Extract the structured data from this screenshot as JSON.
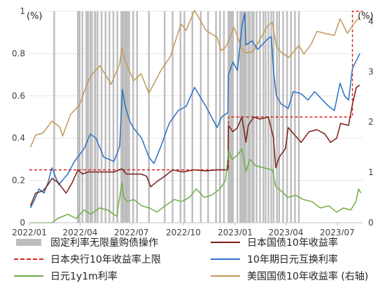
{
  "chart_data": {
    "type": "line",
    "y_unit_left": "(%)",
    "y_unit_right": "(%)",
    "ylim_left": [
      0,
      1
    ],
    "ylim_right": [
      0,
      4.2
    ],
    "yticks_left": [
      "0",
      "0.2",
      "0.4",
      "0.6",
      "0.8",
      "1"
    ],
    "yticks_right": [
      "0",
      "1",
      "2",
      "3",
      "4"
    ],
    "x_tick_labels": [
      "2022/01",
      "2022/04",
      "2022/07",
      "2022/10",
      "2023/01",
      "2023/04",
      "2023/07"
    ],
    "x_range": [
      "2022-01-01",
      "2023-08-15"
    ],
    "legend": [
      {
        "key": "fixed",
        "label": "固定利率无限量购债操作"
      },
      {
        "key": "jgb",
        "label": "日本国债10年收益率"
      },
      {
        "key": "boj",
        "label": "日本央行10年收益率上限"
      },
      {
        "key": "swap",
        "label": "10年期日元互换利率"
      },
      {
        "key": "y1y1m",
        "label": "日元1y1m利率"
      },
      {
        "key": "ust",
        "label": "美国国债10年收益率 (右轴)"
      }
    ],
    "fixed_rate_operation_dates": [
      "2022-02-14",
      "2022-03-28",
      "2022-03-29",
      "2022-03-30",
      "2022-03-31",
      "2022-04-05",
      "2022-04-12",
      "2022-04-15",
      "2022-04-19",
      "2022-04-22",
      "2022-04-27",
      "2022-04-28",
      "2022-05-02",
      "2022-05-09",
      "2022-05-16",
      "2022-05-23",
      "2022-05-30",
      "2022-06-06",
      "2022-06-13",
      "2022-06-14",
      "2022-06-15",
      "2022-06-16",
      "2022-06-17",
      "2022-06-20",
      "2022-06-21",
      "2022-06-22",
      "2022-06-23",
      "2022-06-24",
      "2022-06-27",
      "2022-07-04",
      "2022-07-11",
      "2022-08-01",
      "2022-08-29",
      "2022-09-12",
      "2022-09-26",
      "2022-10-03",
      "2022-10-17",
      "2022-11-01",
      "2022-11-14",
      "2022-11-28",
      "2022-12-05",
      "2022-12-12",
      "2022-12-20",
      "2022-12-21",
      "2022-12-22",
      "2022-12-23",
      "2022-12-26",
      "2022-12-28",
      "2023-01-05",
      "2023-01-10",
      "2023-01-12",
      "2023-01-13",
      "2023-01-16",
      "2023-01-17",
      "2023-01-18",
      "2023-01-20",
      "2023-01-24",
      "2023-01-27",
      "2023-01-31",
      "2023-02-03",
      "2023-02-08",
      "2023-02-14",
      "2023-02-20",
      "2023-02-24",
      "2023-03-01",
      "2023-03-06",
      "2023-03-10",
      "2023-03-16",
      "2023-03-20",
      "2023-03-27",
      "2023-04-03",
      "2023-04-10",
      "2023-04-17",
      "2023-04-24"
    ],
    "series": [
      {
        "key": "boj",
        "axis": "left",
        "color": "#e02020",
        "dash": true,
        "points": [
          [
            "2022-01-01",
            0.25
          ],
          [
            "2022-12-19",
            0.25
          ],
          [
            "2022-12-20",
            0.5
          ],
          [
            "2023-07-27",
            0.5
          ],
          [
            "2023-07-28",
            1.0
          ],
          [
            "2023-08-15",
            1.0
          ]
        ]
      },
      {
        "key": "ust",
        "axis": "right",
        "color": "#c09a58",
        "points": [
          [
            "2022-01-03",
            1.5
          ],
          [
            "2022-01-12",
            1.74
          ],
          [
            "2022-01-25",
            1.78
          ],
          [
            "2022-02-10",
            2.02
          ],
          [
            "2022-02-24",
            1.9
          ],
          [
            "2022-03-01",
            1.72
          ],
          [
            "2022-03-15",
            2.15
          ],
          [
            "2022-03-31",
            2.34
          ],
          [
            "2022-04-12",
            2.72
          ],
          [
            "2022-04-20",
            2.92
          ],
          [
            "2022-05-06",
            3.12
          ],
          [
            "2022-05-26",
            2.75
          ],
          [
            "2022-06-10",
            3.15
          ],
          [
            "2022-06-14",
            3.48
          ],
          [
            "2022-06-20",
            3.2
          ],
          [
            "2022-07-05",
            2.82
          ],
          [
            "2022-07-18",
            2.96
          ],
          [
            "2022-08-01",
            2.57
          ],
          [
            "2022-08-22",
            3.02
          ],
          [
            "2022-09-08",
            3.3
          ],
          [
            "2022-09-27",
            3.95
          ],
          [
            "2022-10-06",
            3.82
          ],
          [
            "2022-10-21",
            4.22
          ],
          [
            "2022-11-10",
            3.82
          ],
          [
            "2022-11-30",
            3.68
          ],
          [
            "2022-12-07",
            3.42
          ],
          [
            "2022-12-15",
            3.48
          ],
          [
            "2022-12-30",
            3.88
          ],
          [
            "2023-01-12",
            3.48
          ],
          [
            "2023-01-19",
            3.37
          ],
          [
            "2023-02-02",
            3.4
          ],
          [
            "2023-02-28",
            3.92
          ],
          [
            "2023-03-08",
            3.98
          ],
          [
            "2023-03-15",
            3.5
          ],
          [
            "2023-03-24",
            3.38
          ],
          [
            "2023-04-06",
            3.28
          ],
          [
            "2023-04-24",
            3.52
          ],
          [
            "2023-05-03",
            3.35
          ],
          [
            "2023-05-16",
            3.55
          ],
          [
            "2023-05-26",
            3.8
          ],
          [
            "2023-06-13",
            3.75
          ],
          [
            "2023-06-26",
            3.72
          ],
          [
            "2023-07-06",
            4.05
          ],
          [
            "2023-07-19",
            3.76
          ],
          [
            "2023-07-31",
            3.96
          ],
          [
            "2023-08-10",
            4.08
          ]
        ]
      },
      {
        "key": "swap",
        "axis": "left",
        "color": "#2a72c4",
        "points": [
          [
            "2022-01-03",
            0.07
          ],
          [
            "2022-01-12",
            0.12
          ],
          [
            "2022-01-18",
            0.16
          ],
          [
            "2022-01-27",
            0.14
          ],
          [
            "2022-02-03",
            0.19
          ],
          [
            "2022-02-10",
            0.26
          ],
          [
            "2022-02-22",
            0.18
          ],
          [
            "2022-03-10",
            0.23
          ],
          [
            "2022-03-22",
            0.29
          ],
          [
            "2022-04-08",
            0.35
          ],
          [
            "2022-04-19",
            0.42
          ],
          [
            "2022-04-29",
            0.4
          ],
          [
            "2022-05-13",
            0.31
          ],
          [
            "2022-05-31",
            0.29
          ],
          [
            "2022-06-10",
            0.36
          ],
          [
            "2022-06-15",
            0.63
          ],
          [
            "2022-06-20",
            0.55
          ],
          [
            "2022-06-28",
            0.48
          ],
          [
            "2022-07-04",
            0.45
          ],
          [
            "2022-07-19",
            0.4
          ],
          [
            "2022-08-01",
            0.31
          ],
          [
            "2022-08-10",
            0.28
          ],
          [
            "2022-08-22",
            0.36
          ],
          [
            "2022-09-06",
            0.47
          ],
          [
            "2022-09-22",
            0.53
          ],
          [
            "2022-10-06",
            0.55
          ],
          [
            "2022-10-21",
            0.64
          ],
          [
            "2022-11-10",
            0.55
          ],
          [
            "2022-11-30",
            0.45
          ],
          [
            "2022-12-08",
            0.5
          ],
          [
            "2022-12-19",
            0.52
          ],
          [
            "2022-12-20",
            0.7
          ],
          [
            "2022-12-28",
            0.76
          ],
          [
            "2023-01-05",
            0.72
          ],
          [
            "2023-01-13",
            0.93
          ],
          [
            "2023-01-18",
            0.99
          ],
          [
            "2023-01-20",
            0.84
          ],
          [
            "2023-01-31",
            0.86
          ],
          [
            "2023-02-10",
            0.82
          ],
          [
            "2023-02-28",
            0.87
          ],
          [
            "2023-03-06",
            0.88
          ],
          [
            "2023-03-10",
            0.72
          ],
          [
            "2023-03-15",
            0.6
          ],
          [
            "2023-03-24",
            0.56
          ],
          [
            "2023-04-05",
            0.54
          ],
          [
            "2023-04-14",
            0.62
          ],
          [
            "2023-04-28",
            0.61
          ],
          [
            "2023-05-10",
            0.58
          ],
          [
            "2023-05-22",
            0.62
          ],
          [
            "2023-06-05",
            0.58
          ],
          [
            "2023-06-16",
            0.55
          ],
          [
            "2023-06-26",
            0.53
          ],
          [
            "2023-07-06",
            0.66
          ],
          [
            "2023-07-14",
            0.6
          ],
          [
            "2023-07-21",
            0.58
          ],
          [
            "2023-07-28",
            0.73
          ],
          [
            "2023-08-10",
            0.8
          ]
        ]
      },
      {
        "key": "jgb",
        "axis": "left",
        "color": "#7b1e16",
        "points": [
          [
            "2022-01-03",
            0.08
          ],
          [
            "2022-01-12",
            0.14
          ],
          [
            "2022-01-25",
            0.15
          ],
          [
            "2022-02-03",
            0.18
          ],
          [
            "2022-02-10",
            0.21
          ],
          [
            "2022-02-21",
            0.19
          ],
          [
            "2022-03-07",
            0.14
          ],
          [
            "2022-03-18",
            0.19
          ],
          [
            "2022-03-28",
            0.25
          ],
          [
            "2022-04-05",
            0.23
          ],
          [
            "2022-04-15",
            0.24
          ],
          [
            "2022-05-10",
            0.24
          ],
          [
            "2022-05-31",
            0.24
          ],
          [
            "2022-06-14",
            0.255
          ],
          [
            "2022-06-22",
            0.23
          ],
          [
            "2022-07-05",
            0.23
          ],
          [
            "2022-07-18",
            0.23
          ],
          [
            "2022-07-28",
            0.22
          ],
          [
            "2022-08-04",
            0.17
          ],
          [
            "2022-08-18",
            0.2
          ],
          [
            "2022-08-29",
            0.22
          ],
          [
            "2022-09-12",
            0.25
          ],
          [
            "2022-09-30",
            0.24
          ],
          [
            "2022-10-20",
            0.25
          ],
          [
            "2022-11-10",
            0.245
          ],
          [
            "2022-11-30",
            0.25
          ],
          [
            "2022-12-19",
            0.25
          ],
          [
            "2022-12-20",
            0.46
          ],
          [
            "2022-12-28",
            0.43
          ],
          [
            "2023-01-05",
            0.45
          ],
          [
            "2023-01-13",
            0.5
          ],
          [
            "2023-01-20",
            0.38
          ],
          [
            "2023-01-24",
            0.46
          ],
          [
            "2023-02-03",
            0.5
          ],
          [
            "2023-02-14",
            0.49
          ],
          [
            "2023-03-01",
            0.5
          ],
          [
            "2023-03-10",
            0.4
          ],
          [
            "2023-03-14",
            0.26
          ],
          [
            "2023-03-20",
            0.31
          ],
          [
            "2023-03-31",
            0.35
          ],
          [
            "2023-04-05",
            0.45
          ],
          [
            "2023-04-28",
            0.38
          ],
          [
            "2023-05-12",
            0.43
          ],
          [
            "2023-05-26",
            0.44
          ],
          [
            "2023-06-09",
            0.42
          ],
          [
            "2023-06-19",
            0.38
          ],
          [
            "2023-06-30",
            0.4
          ],
          [
            "2023-07-07",
            0.47
          ],
          [
            "2023-07-21",
            0.46
          ],
          [
            "2023-07-28",
            0.56
          ],
          [
            "2023-08-04",
            0.64
          ],
          [
            "2023-08-10",
            0.65
          ]
        ]
      },
      {
        "key": "y1y1m",
        "axis": "left",
        "color": "#70ad47",
        "points": [
          [
            "2022-01-03",
            0.0
          ],
          [
            "2022-02-10",
            0.0
          ],
          [
            "2022-02-20",
            0.02
          ],
          [
            "2022-03-10",
            0.04
          ],
          [
            "2022-03-25",
            0.02
          ],
          [
            "2022-04-08",
            0.06
          ],
          [
            "2022-04-20",
            0.04
          ],
          [
            "2022-05-05",
            0.07
          ],
          [
            "2022-05-20",
            0.06
          ],
          [
            "2022-06-05",
            0.03
          ],
          [
            "2022-06-14",
            0.19
          ],
          [
            "2022-06-17",
            0.12
          ],
          [
            "2022-06-24",
            0.1
          ],
          [
            "2022-07-05",
            0.11
          ],
          [
            "2022-07-19",
            0.08
          ],
          [
            "2022-08-02",
            0.07
          ],
          [
            "2022-08-15",
            0.05
          ],
          [
            "2022-08-30",
            0.08
          ],
          [
            "2022-09-15",
            0.11
          ],
          [
            "2022-09-28",
            0.1
          ],
          [
            "2022-10-12",
            0.12
          ],
          [
            "2022-10-24",
            0.16
          ],
          [
            "2022-11-07",
            0.12
          ],
          [
            "2022-11-20",
            0.13
          ],
          [
            "2022-12-05",
            0.16
          ],
          [
            "2022-12-15",
            0.2
          ],
          [
            "2022-12-20",
            0.34
          ],
          [
            "2022-12-27",
            0.3
          ],
          [
            "2023-01-05",
            0.32
          ],
          [
            "2023-01-13",
            0.35
          ],
          [
            "2023-01-20",
            0.24
          ],
          [
            "2023-01-27",
            0.3
          ],
          [
            "2023-02-06",
            0.27
          ],
          [
            "2023-02-20",
            0.26
          ],
          [
            "2023-03-08",
            0.25
          ],
          [
            "2023-03-14",
            0.17
          ],
          [
            "2023-03-24",
            0.15
          ],
          [
            "2023-04-04",
            0.12
          ],
          [
            "2023-04-18",
            0.13
          ],
          [
            "2023-05-02",
            0.11
          ],
          [
            "2023-05-17",
            0.1
          ],
          [
            "2023-06-01",
            0.07
          ],
          [
            "2023-06-16",
            0.08
          ],
          [
            "2023-06-30",
            0.05
          ],
          [
            "2023-07-12",
            0.07
          ],
          [
            "2023-07-25",
            0.06
          ],
          [
            "2023-08-03",
            0.1
          ],
          [
            "2023-08-08",
            0.16
          ],
          [
            "2023-08-12",
            0.14
          ]
        ]
      }
    ]
  }
}
